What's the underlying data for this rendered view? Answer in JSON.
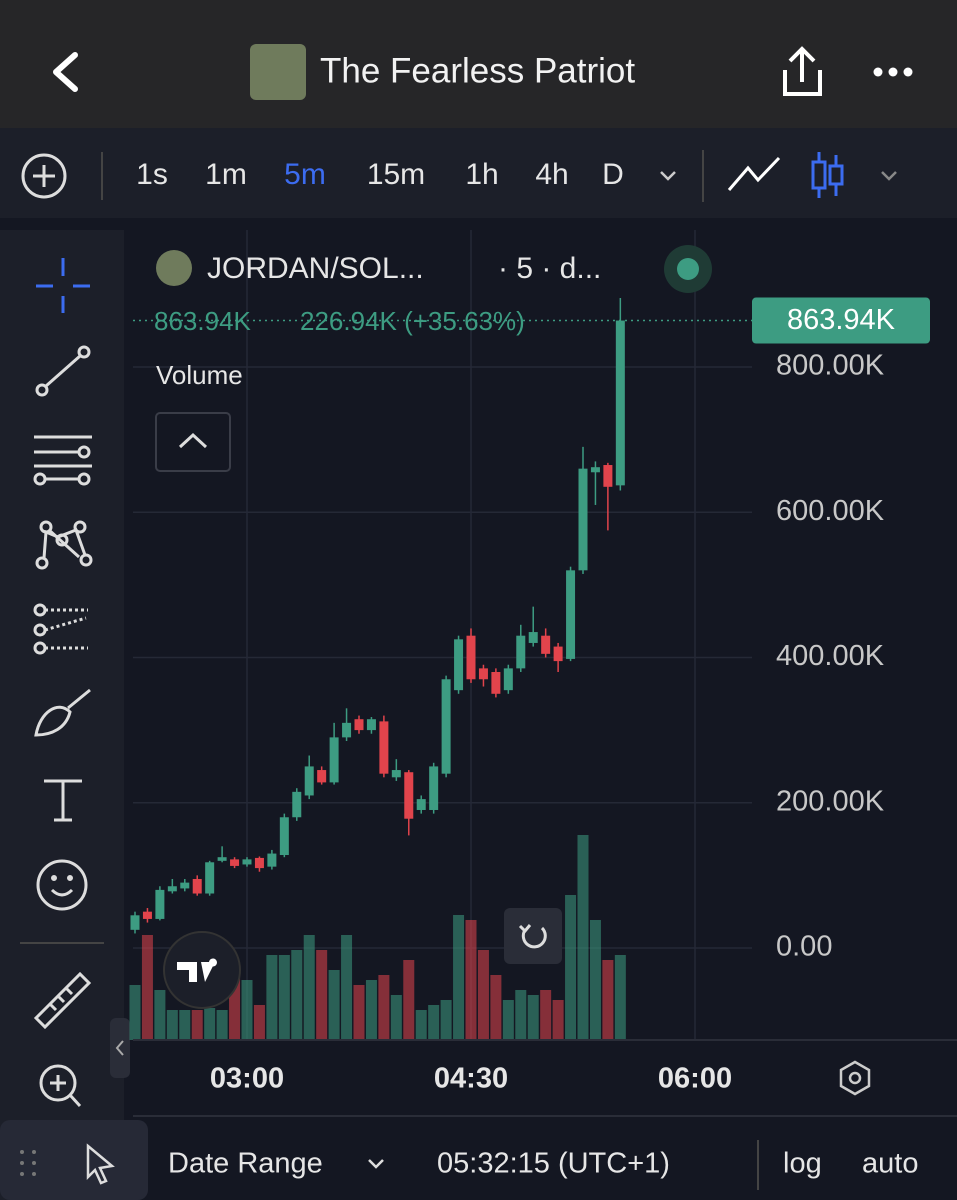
{
  "header": {
    "title": "The Fearless Patriot"
  },
  "toolbar": {
    "intervals": [
      "1s",
      "1m",
      "5m",
      "15m",
      "1h",
      "4h",
      "D"
    ],
    "active_interval": "5m"
  },
  "legend": {
    "symbol": "JORDAN/SOL...",
    "interval": "· 5 · d...",
    "last": "863.94K",
    "change": "226.94K (+35.63%)",
    "volume_label": "Volume"
  },
  "chart_data": {
    "type": "candlestick",
    "x": [
      "02:15",
      "02:20",
      "02:25",
      "02:30",
      "02:35",
      "02:40",
      "02:45",
      "02:50",
      "02:55",
      "03:00",
      "03:05",
      "03:10",
      "03:15",
      "03:20",
      "03:25",
      "03:30",
      "03:35",
      "03:40",
      "03:45",
      "03:50",
      "03:55",
      "04:00",
      "04:05",
      "04:10",
      "04:15",
      "04:20",
      "04:25",
      "04:30",
      "04:35",
      "04:40",
      "04:45",
      "04:50",
      "04:55",
      "05:00",
      "05:05",
      "05:10",
      "05:15",
      "05:20",
      "05:25",
      "05:30"
    ],
    "open": [
      25000,
      50000,
      40000,
      78000,
      82000,
      95000,
      75000,
      120000,
      122000,
      115000,
      124000,
      112000,
      128000,
      180000,
      210000,
      245000,
      228000,
      290000,
      315000,
      300000,
      312000,
      235000,
      242000,
      190000,
      190000,
      240000,
      355000,
      430000,
      385000,
      380000,
      355000,
      385000,
      420000,
      430000,
      415000,
      398000,
      520000,
      655000,
      665000,
      637000
    ],
    "high": [
      50000,
      55000,
      85000,
      95000,
      95000,
      100000,
      120000,
      140000,
      125000,
      125000,
      126000,
      135000,
      185000,
      220000,
      265000,
      250000,
      310000,
      330000,
      320000,
      318000,
      320000,
      260000,
      245000,
      210000,
      255000,
      375000,
      430000,
      440000,
      390000,
      385000,
      390000,
      445000,
      470000,
      440000,
      420000,
      525000,
      690000,
      670000,
      668000,
      895000
    ],
    "low": [
      20000,
      35000,
      38000,
      75000,
      78000,
      72000,
      72000,
      118000,
      110000,
      112000,
      105000,
      108000,
      125000,
      175000,
      205000,
      225000,
      225000,
      285000,
      295000,
      295000,
      235000,
      230000,
      155000,
      185000,
      185000,
      235000,
      350000,
      365000,
      360000,
      345000,
      350000,
      380000,
      415000,
      400000,
      380000,
      395000,
      515000,
      610000,
      575000,
      630000
    ],
    "close": [
      45000,
      40000,
      80000,
      85000,
      90000,
      75000,
      118000,
      125000,
      113000,
      122000,
      110000,
      130000,
      180000,
      215000,
      250000,
      228000,
      290000,
      310000,
      300000,
      315000,
      240000,
      245000,
      178000,
      205000,
      250000,
      370000,
      425000,
      370000,
      370000,
      350000,
      385000,
      430000,
      435000,
      405000,
      395000,
      520000,
      660000,
      662000,
      635000,
      863940
    ],
    "volume": [
      55,
      105,
      50,
      30,
      30,
      30,
      32,
      30,
      65,
      60,
      35,
      85,
      85,
      90,
      105,
      90,
      70,
      105,
      55,
      60,
      65,
      45,
      80,
      30,
      35,
      40,
      125,
      120,
      90,
      65,
      40,
      50,
      45,
      50,
      40,
      145,
      205,
      120,
      80,
      85
    ],
    "up_color": "#3d9c82",
    "down_color": "#e2444c",
    "ylim": [
      -126700,
      988600
    ],
    "yticks": [
      {
        "value": 0,
        "label": "0.00"
      },
      {
        "value": 200000,
        "label": "200.00K"
      },
      {
        "value": 400000,
        "label": "400.00K"
      },
      {
        "value": 600000,
        "label": "600.00K"
      },
      {
        "value": 800000,
        "label": "800.00K"
      }
    ],
    "xticks": [
      "03:00",
      "04:30",
      "06:00"
    ],
    "last_price_label": "863.94K",
    "grid": true
  },
  "footer": {
    "date_range": "Date Range",
    "clock": "05:32:15 (UTC+1)",
    "log": "log",
    "auto": "auto"
  }
}
